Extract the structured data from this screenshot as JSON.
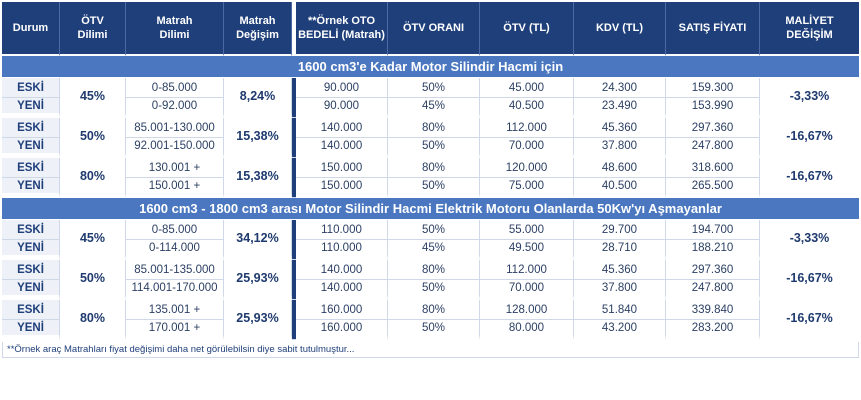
{
  "headers": [
    "Durum",
    "ÖTV Dilimi",
    "Matrah Dilimi",
    "Matrah Değişim",
    "**Örnek OTO BEDELİ (Matrah)",
    "ÖTV ORANI",
    "ÖTV (TL)",
    "KDV (TL)",
    "SATIŞ FİYATI",
    "MALİYET DEĞİŞİM"
  ],
  "header_lines": [
    [
      "Durum"
    ],
    [
      "ÖTV",
      "Dilimi"
    ],
    [
      "Matrah",
      "Dilimi"
    ],
    [
      "Matrah",
      "Değişim"
    ],
    [
      "**Örnek OTO",
      "BEDELİ (Matrah)"
    ],
    [
      "ÖTV ORANI"
    ],
    [
      "ÖTV (TL)"
    ],
    [
      "KDV (TL)"
    ],
    [
      "SATIŞ FİYATI"
    ],
    [
      "MALİYET",
      "DEĞİŞİM"
    ]
  ],
  "sections": [
    {
      "title": "1600 cm3'e Kadar Motor Silindir Hacmi için",
      "groups": [
        {
          "dilim": "45%",
          "degisim": "8,24%",
          "maliyet": "-3,33%",
          "rows": [
            {
              "durum": "ESKİ",
              "matrah": "0-85.000",
              "bedel": "90.000",
              "oran": "50%",
              "otv": "45.000",
              "kdv": "24.300",
              "fiyat": "159.300"
            },
            {
              "durum": "YENİ",
              "matrah": "0-92.000",
              "bedel": "90.000",
              "oran": "45%",
              "otv": "40.500",
              "kdv": "23.490",
              "fiyat": "153.990"
            }
          ]
        },
        {
          "dilim": "50%",
          "degisim": "15,38%",
          "maliyet": "-16,67%",
          "rows": [
            {
              "durum": "ESKİ",
              "matrah": "85.001-130.000",
              "bedel": "140.000",
              "oran": "80%",
              "otv": "112.000",
              "kdv": "45.360",
              "fiyat": "297.360"
            },
            {
              "durum": "YENİ",
              "matrah": "92.001-150.000",
              "bedel": "140.000",
              "oran": "50%",
              "otv": "70.000",
              "kdv": "37.800",
              "fiyat": "247.800"
            }
          ]
        },
        {
          "dilim": "80%",
          "degisim": "15,38%",
          "maliyet": "-16,67%",
          "rows": [
            {
              "durum": "ESKİ",
              "matrah": "130.001 +",
              "bedel": "150.000",
              "oran": "80%",
              "otv": "120.000",
              "kdv": "48.600",
              "fiyat": "318.600"
            },
            {
              "durum": "YENİ",
              "matrah": "150.001 +",
              "bedel": "150.000",
              "oran": "50%",
              "otv": "75.000",
              "kdv": "40.500",
              "fiyat": "265.500"
            }
          ]
        }
      ]
    },
    {
      "title": "1600 cm3 - 1800 cm3 arası Motor Silindir Hacmi Elektrik Motoru Olanlarda 50Kw'yı Aşmayanlar",
      "groups": [
        {
          "dilim": "45%",
          "degisim": "34,12%",
          "maliyet": "-3,33%",
          "rows": [
            {
              "durum": "ESKİ",
              "matrah": "0-85.000",
              "bedel": "110.000",
              "oran": "50%",
              "otv": "55.000",
              "kdv": "29.700",
              "fiyat": "194.700"
            },
            {
              "durum": "YENİ",
              "matrah": "0-114.000",
              "bedel": "110.000",
              "oran": "45%",
              "otv": "49.500",
              "kdv": "28.710",
              "fiyat": "188.210"
            }
          ]
        },
        {
          "dilim": "50%",
          "degisim": "25,93%",
          "maliyet": "-16,67%",
          "rows": [
            {
              "durum": "ESKİ",
              "matrah": "85.001-135.000",
              "bedel": "140.000",
              "oran": "80%",
              "otv": "112.000",
              "kdv": "45.360",
              "fiyat": "297.360"
            },
            {
              "durum": "YENİ",
              "matrah": "114.001-170.000",
              "bedel": "140.000",
              "oran": "50%",
              "otv": "70.000",
              "kdv": "37.800",
              "fiyat": "247.800"
            }
          ]
        },
        {
          "dilim": "80%",
          "degisim": "25,93%",
          "maliyet": "-16,67%",
          "rows": [
            {
              "durum": "ESKİ",
              "matrah": "135.001 +",
              "bedel": "160.000",
              "oran": "80%",
              "otv": "128.000",
              "kdv": "51.840",
              "fiyat": "339.840"
            },
            {
              "durum": "YENİ",
              "matrah": "170.001 +",
              "bedel": "160.000",
              "oran": "50%",
              "otv": "80.000",
              "kdv": "43.200",
              "fiyat": "283.200"
            }
          ]
        }
      ]
    }
  ],
  "footnote": "**Örnek araç Matrahları fiyat değişimi daha net görülebilsin diye sabit tutulmuştur..."
}
